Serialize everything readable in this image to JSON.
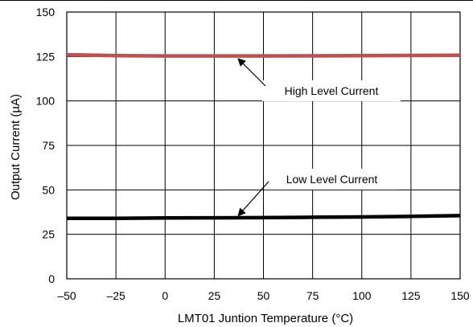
{
  "chart_data": {
    "type": "line",
    "title": "",
    "xlabel": "LMT01 Juntion Temperature (°C)",
    "ylabel": "Output Current (µA)",
    "xlim": [
      -50,
      150
    ],
    "ylim": [
      0,
      150
    ],
    "xticks": [
      -50,
      -25,
      0,
      25,
      50,
      75,
      100,
      125,
      150
    ],
    "xtick_labels": [
      "–50",
      "–25",
      "0",
      "25",
      "50",
      "75",
      "100",
      "125",
      "150"
    ],
    "yticks": [
      0,
      25,
      50,
      75,
      100,
      125,
      150
    ],
    "ytick_labels": [
      "0",
      "25",
      "50",
      "75",
      "100",
      "125",
      "150"
    ],
    "grid": true,
    "legend": "none",
    "series": [
      {
        "name": "High Level Current",
        "color": "#c0504d",
        "x": [
          -50,
          -25,
          0,
          25,
          50,
          75,
          100,
          125,
          150
        ],
        "y": [
          126.0,
          125.5,
          125.3,
          125.3,
          125.3,
          125.4,
          125.5,
          125.6,
          125.7
        ]
      },
      {
        "name": "Low Level Current",
        "color": "#000000",
        "x": [
          -50,
          -25,
          0,
          25,
          50,
          75,
          100,
          125,
          150
        ],
        "y": [
          34.0,
          34.0,
          34.2,
          34.3,
          34.4,
          34.6,
          34.8,
          35.1,
          35.5
        ]
      }
    ],
    "annotations": [
      {
        "text": "High Level Current",
        "series": 0,
        "x": 37,
        "y": 125.3
      },
      {
        "text": "Low Level Current",
        "series": 1,
        "x": 37,
        "y": 34.4
      }
    ]
  }
}
